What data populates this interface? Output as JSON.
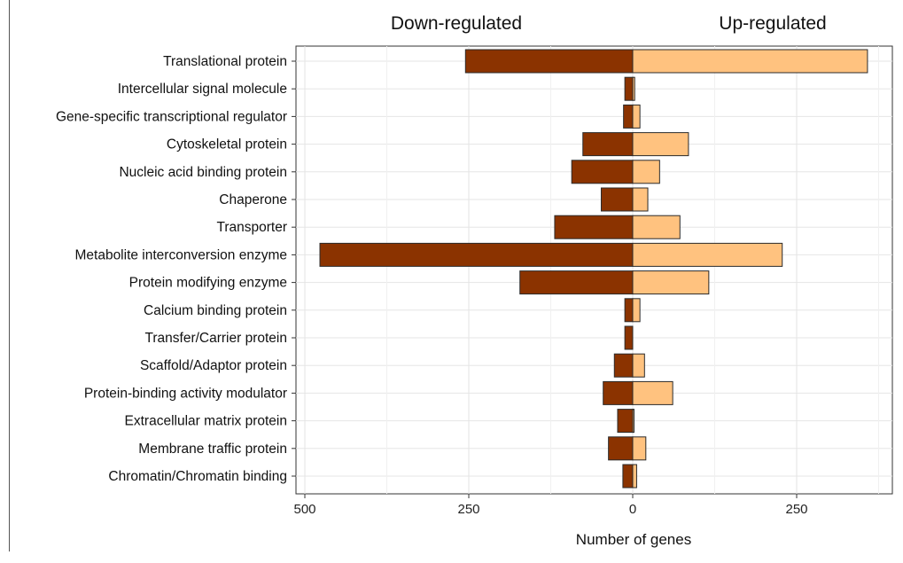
{
  "chart_data": {
    "type": "bar",
    "orientation": "horizontal",
    "diverging": true,
    "categories": [
      "Translational protein",
      "Intercellular signal molecule",
      "Gene-specific transcriptional regulator",
      "Cytoskeletal protein",
      "Nucleic acid binding protein",
      "Chaperone",
      "Transporter",
      "Metabolite interconversion enzyme",
      "Protein modifying enzyme",
      "Calcium binding protein",
      "Transfer/Carrier protein",
      "Scaffold/Adaptor protein",
      "Protein-binding activity modulator",
      "Extracellular matrix protein",
      "Membrane traffic protein",
      "Chromatin/Chromatin binding"
    ],
    "series": [
      {
        "name": "Down-regulated",
        "color": "#8b3300",
        "values": [
          255,
          12,
          14,
          76,
          93,
          48,
          119,
          477,
          172,
          12,
          12,
          28,
          45,
          23,
          37,
          15
        ]
      },
      {
        "name": "Up-regulated",
        "color": "#ffc27f",
        "values": [
          358,
          3,
          11,
          85,
          41,
          23,
          72,
          228,
          116,
          11,
          0,
          18,
          61,
          2,
          20,
          6
        ]
      }
    ],
    "header_left": "Down-regulated",
    "header_right": "Up-regulated",
    "xlabel": "Number of genes",
    "ylabel": "",
    "xlim": [
      -500,
      375
    ],
    "xticks": [
      -500,
      -250,
      0,
      250
    ],
    "xtick_labels": [
      "500",
      "250",
      "0",
      "250"
    ],
    "grid": true,
    "bar_edge_color": "#2b2b2b"
  }
}
